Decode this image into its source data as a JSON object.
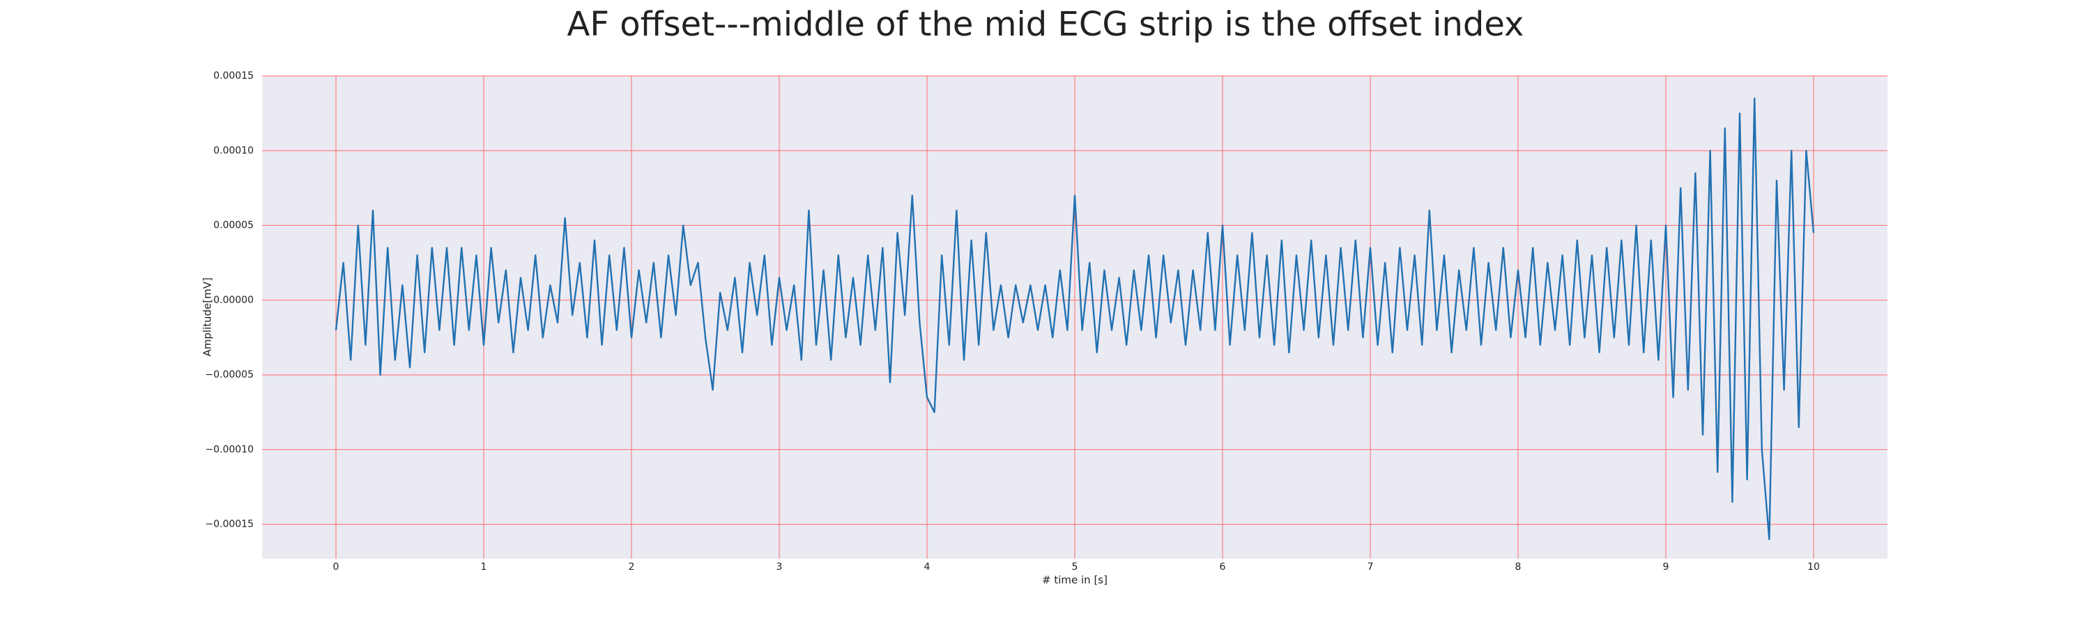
{
  "chart_data": {
    "type": "line",
    "title": "AF offset---middle of the mid ECG strip is the offset index",
    "x_label": "# time in [s]",
    "y_label": "Amplitude[mV]",
    "color": "#2271b1",
    "background": "#eaeaf2",
    "grid": true,
    "grid_color": "#ff6b6b",
    "xlim": [
      -0.5,
      10.5
    ],
    "xticks": [
      0,
      1,
      2,
      3,
      4,
      5,
      6,
      7,
      8,
      9,
      10
    ],
    "ylim": [
      -0.000173,
      0.00015
    ],
    "yticks": [
      {
        "value": -0.00015,
        "label": "−0.00015"
      },
      {
        "value": -0.0001,
        "label": "−0.00010"
      },
      {
        "value": -5e-05,
        "label": "−0.00005"
      },
      {
        "value": 0,
        "label": "0.00000"
      },
      5e-05,
      {
        "value": 0.0001,
        "label": "0.00010"
      },
      0.00015
    ],
    "x": [
      0,
      0.05,
      0.1,
      0.15,
      0.2,
      0.25,
      0.3,
      0.35,
      0.4,
      0.45,
      0.5,
      0.55,
      0.6,
      0.65,
      0.7,
      0.75,
      0.8,
      0.85,
      0.9,
      0.95,
      1,
      1.05,
      1.1,
      1.15,
      1.2,
      1.25,
      1.3,
      1.35,
      1.4,
      1.45,
      1.5,
      1.55,
      1.6,
      1.65,
      1.7,
      1.75,
      1.8,
      1.85,
      1.9,
      1.95,
      2,
      2.05,
      2.1,
      2.15,
      2.2,
      2.25,
      2.3,
      2.35,
      2.4,
      2.45,
      2.5,
      2.55,
      2.6,
      2.65,
      2.7,
      2.75,
      2.8,
      2.85,
      2.9,
      2.95,
      3,
      3.05,
      3.1,
      3.15,
      3.2,
      3.25,
      3.3,
      3.35,
      3.4,
      3.45,
      3.5,
      3.55,
      3.6,
      3.65,
      3.7,
      3.75,
      3.8,
      3.85,
      3.9,
      3.95,
      4,
      4.05,
      4.1,
      4.15,
      4.2,
      4.25,
      4.3,
      4.35,
      4.4,
      4.45,
      4.5,
      4.55,
      4.6,
      4.65,
      4.7,
      4.75,
      4.8,
      4.85,
      4.9,
      4.95,
      5,
      5.05,
      5.1,
      5.15,
      5.2,
      5.25,
      5.3,
      5.35,
      5.4,
      5.45,
      5.5,
      5.55,
      5.6,
      5.65,
      5.7,
      5.75,
      5.8,
      5.85,
      5.9,
      5.95,
      6,
      6.05,
      6.1,
      6.15,
      6.2,
      6.25,
      6.3,
      6.35,
      6.4,
      6.45,
      6.5,
      6.55,
      6.6,
      6.65,
      6.7,
      6.75,
      6.8,
      6.85,
      6.9,
      6.95,
      7,
      7.05,
      7.1,
      7.15,
      7.2,
      7.25,
      7.3,
      7.35,
      7.4,
      7.45,
      7.5,
      7.55,
      7.6,
      7.65,
      7.7,
      7.75,
      7.8,
      7.85,
      7.9,
      7.95,
      8,
      8.05,
      8.1,
      8.15,
      8.2,
      8.25,
      8.3,
      8.35,
      8.4,
      8.45,
      8.5,
      8.55,
      8.6,
      8.65,
      8.7,
      8.75,
      8.8,
      8.85,
      8.9,
      8.95,
      9,
      9.05,
      9.1,
      9.15,
      9.2,
      9.25,
      9.3,
      9.35,
      9.4,
      9.45,
      9.5,
      9.55,
      9.6,
      9.65,
      9.7,
      9.75,
      9.8,
      9.85,
      9.9,
      9.95,
      10
    ],
    "values": [
      -2e-05,
      2.5e-05,
      -4e-05,
      5e-05,
      -3e-05,
      6e-05,
      -5e-05,
      3.5e-05,
      -4e-05,
      1e-05,
      -4.5e-05,
      3e-05,
      -3.5e-05,
      3.5e-05,
      -2e-05,
      3.5e-05,
      -3e-05,
      3.5e-05,
      -2e-05,
      3e-05,
      -3e-05,
      3.5e-05,
      -1.5e-05,
      2e-05,
      -3.5e-05,
      1.5e-05,
      -2e-05,
      3e-05,
      -2.5e-05,
      1e-05,
      -1.5e-05,
      5.5e-05,
      -1e-05,
      2.5e-05,
      -2.5e-05,
      4e-05,
      -3e-05,
      3e-05,
      -2e-05,
      3.5e-05,
      -2.5e-05,
      2e-05,
      -1.5e-05,
      2.5e-05,
      -2.5e-05,
      3e-05,
      -1e-05,
      5e-05,
      1e-05,
      2.5e-05,
      -2.5e-05,
      -6e-05,
      5e-06,
      -2e-05,
      1.5e-05,
      -3.5e-05,
      2.5e-05,
      -1e-05,
      3e-05,
      -3e-05,
      1.5e-05,
      -2e-05,
      1e-05,
      -4e-05,
      6e-05,
      -3e-05,
      2e-05,
      -4e-05,
      3e-05,
      -2.5e-05,
      1.5e-05,
      -3e-05,
      3e-05,
      -2e-05,
      3.5e-05,
      -5.5e-05,
      4.5e-05,
      -1e-05,
      7e-05,
      -1.5e-05,
      -6.5e-05,
      -7.5e-05,
      3e-05,
      -3e-05,
      6e-05,
      -4e-05,
      4e-05,
      -3e-05,
      4.5e-05,
      -2e-05,
      1e-05,
      -2.5e-05,
      1e-05,
      -1.5e-05,
      1e-05,
      -2e-05,
      1e-05,
      -2.5e-05,
      2e-05,
      -2e-05,
      7e-05,
      -2e-05,
      2.5e-05,
      -3.5e-05,
      2e-05,
      -2e-05,
      1.5e-05,
      -3e-05,
      2e-05,
      -2e-05,
      3e-05,
      -2.5e-05,
      3e-05,
      -1.5e-05,
      2e-05,
      -3e-05,
      2e-05,
      -2e-05,
      4.5e-05,
      -2e-05,
      5e-05,
      -3e-05,
      3e-05,
      -2e-05,
      4.5e-05,
      -2.5e-05,
      3e-05,
      -3e-05,
      4e-05,
      -3.5e-05,
      3e-05,
      -2e-05,
      4e-05,
      -2.5e-05,
      3e-05,
      -3e-05,
      3.5e-05,
      -2e-05,
      4e-05,
      -2.5e-05,
      3.5e-05,
      -3e-05,
      2.5e-05,
      -3.5e-05,
      3.5e-05,
      -2e-05,
      3e-05,
      -3e-05,
      6e-05,
      -2e-05,
      3e-05,
      -3.5e-05,
      2e-05,
      -2e-05,
      3.5e-05,
      -3e-05,
      2.5e-05,
      -2e-05,
      3.5e-05,
      -2.5e-05,
      2e-05,
      -2.5e-05,
      3.5e-05,
      -3e-05,
      2.5e-05,
      -2e-05,
      3e-05,
      -3e-05,
      4e-05,
      -2.5e-05,
      3e-05,
      -3.5e-05,
      3.5e-05,
      -2.5e-05,
      4e-05,
      -3e-05,
      5e-05,
      -3.5e-05,
      4e-05,
      -4e-05,
      5e-05,
      -6.5e-05,
      7.5e-05,
      -6e-05,
      8.5e-05,
      -9e-05,
      0.0001,
      -0.000115,
      0.000115,
      -0.000135,
      0.000125,
      -0.00012,
      0.000135,
      -0.0001,
      -0.00016,
      8e-05,
      -6e-05,
      0.0001,
      -8.5e-05,
      0.0001,
      4.5e-05
    ]
  }
}
